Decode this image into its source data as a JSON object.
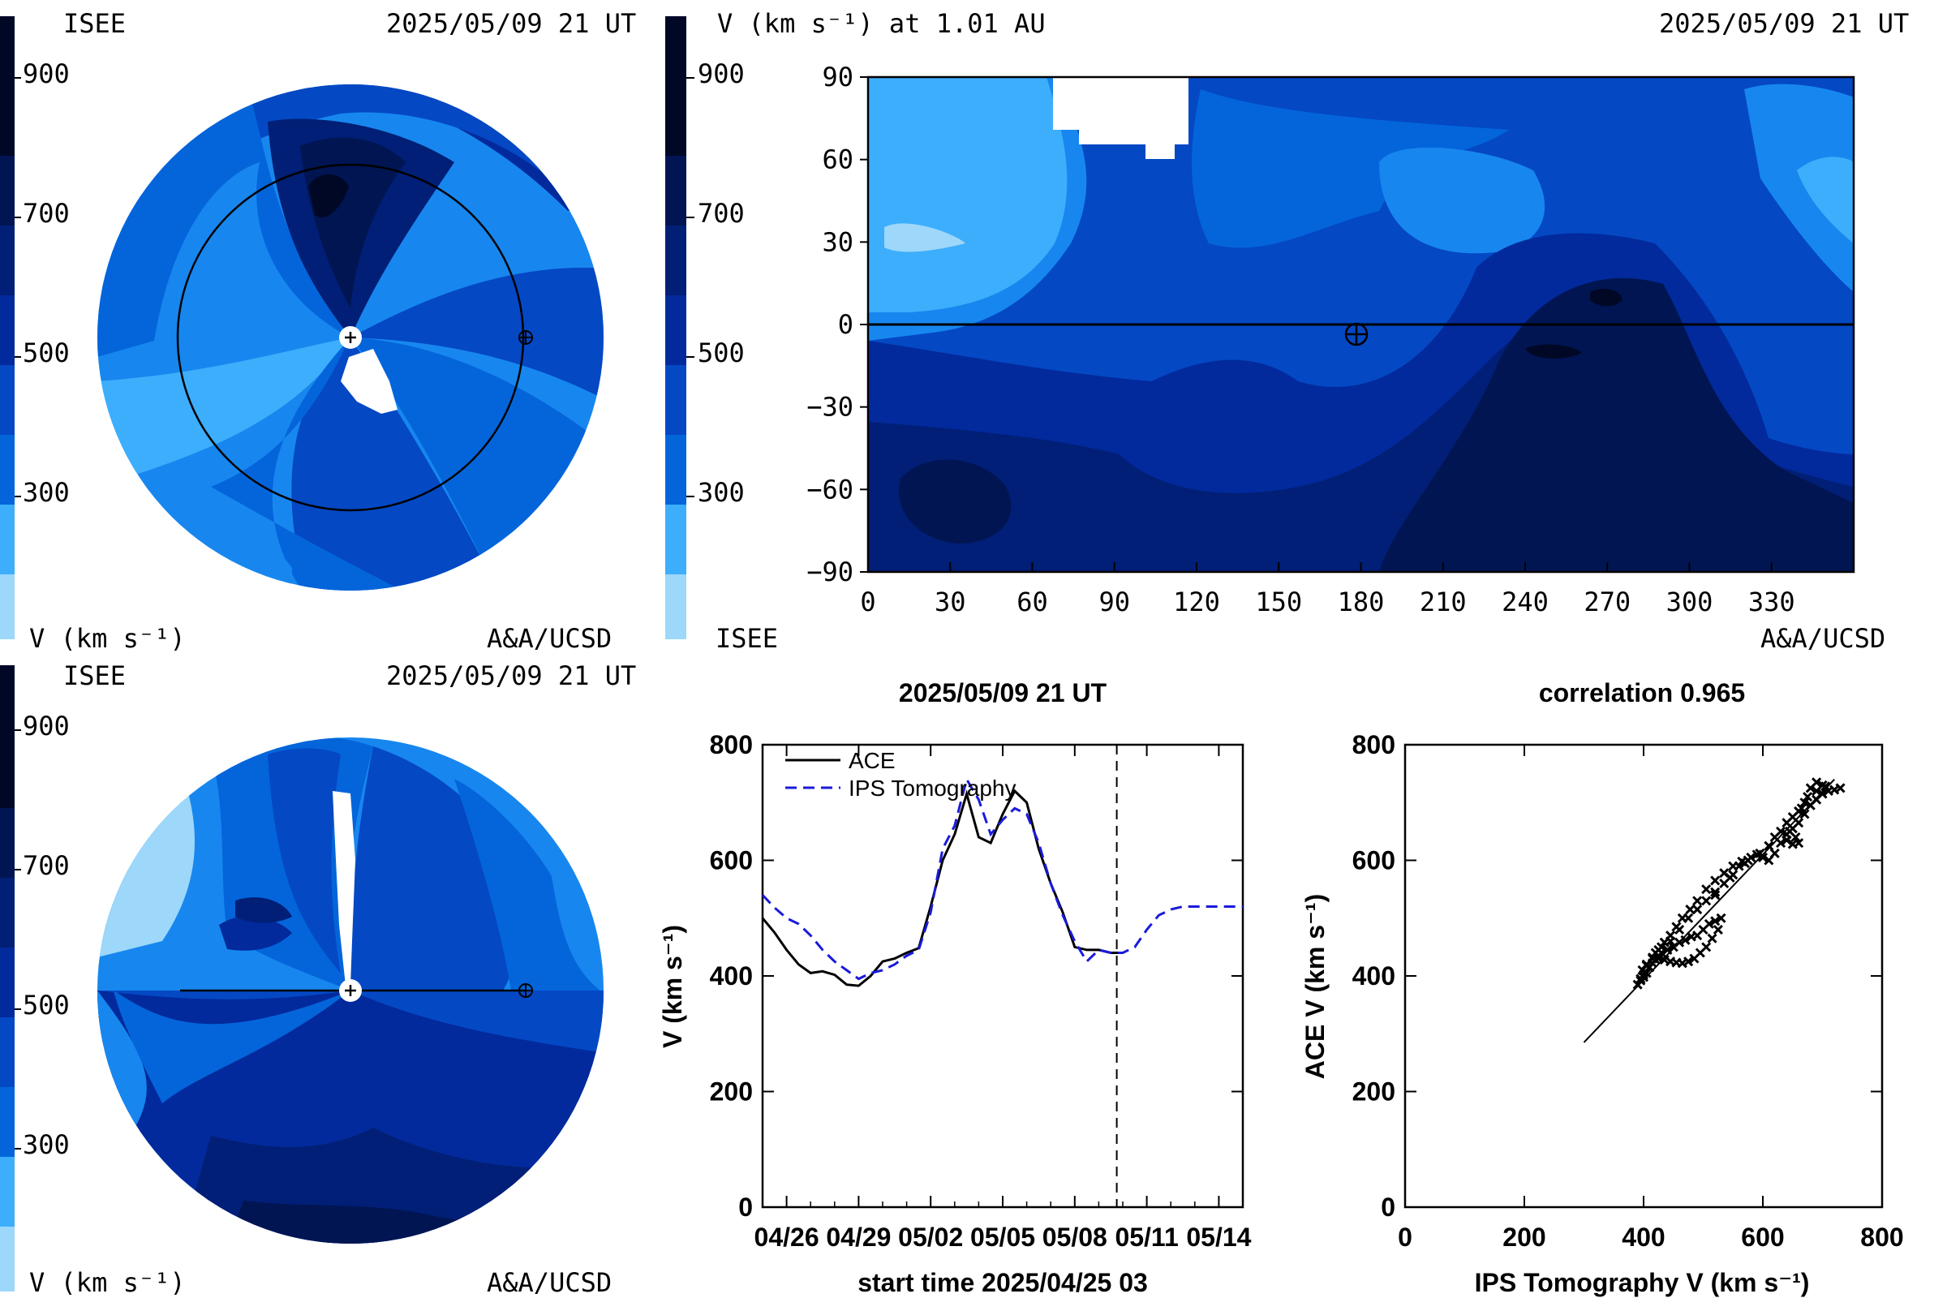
{
  "colors": {
    "c1": "#9dd7fa",
    "c2": "#3daefc",
    "c3": "#1787ef",
    "c4": "#0465db",
    "c5": "#0448c4",
    "c6": "#022a9c",
    "c7": "#011f76",
    "c8": "#001552",
    "c9": "#000826"
  },
  "colorbar": {
    "ticks": [
      "900",
      "700",
      "500",
      "300"
    ]
  },
  "panel_top_left": {
    "org": "ISEE",
    "timestamp": "2025/05/09 21 UT",
    "unit": "V (km s⁻¹)",
    "credit": "A&A/UCSD"
  },
  "panel_bottom_left": {
    "org": "ISEE",
    "timestamp": "2025/05/09 21 UT",
    "unit": "V (km s⁻¹)",
    "credit": "A&A/UCSD"
  },
  "panel_map": {
    "title": "V (km s⁻¹) at 1.01 AU",
    "timestamp": "2025/05/09 21 UT",
    "org": "ISEE",
    "credit": "A&A/UCSD",
    "x_ticks": [
      "0",
      "30",
      "60",
      "90",
      "120",
      "150",
      "180",
      "210",
      "240",
      "270",
      "300",
      "330"
    ],
    "y_ticks": [
      "90",
      "60",
      "30",
      "0",
      "−30",
      "−60",
      "−90"
    ]
  },
  "chart_data": [
    {
      "type": "line",
      "title": "2025/05/09 21 UT",
      "xlabel": "start time 2025/04/25 03",
      "ylabel": "V (km s⁻¹)",
      "x_tick_labels": [
        "04/26",
        "04/29",
        "05/02",
        "05/05",
        "05/08",
        "05/11",
        "05/14"
      ],
      "y_tick_labels": [
        "0",
        "200",
        "400",
        "600",
        "800"
      ],
      "ylim": [
        0,
        800
      ],
      "xlim_days": [
        0,
        20
      ],
      "current_time_day": 14.75,
      "series": [
        {
          "name": "ACE",
          "style": "solid",
          "color": "#000000",
          "x": [
            0,
            0.5,
            1,
            1.5,
            2,
            2.5,
            3,
            3.5,
            4,
            4.5,
            5,
            5.5,
            6,
            6.5,
            7,
            7.5,
            8,
            8.5,
            9,
            9.5,
            10,
            10.5,
            11,
            11.5,
            12,
            12.5,
            13,
            13.5,
            14,
            14.5,
            15
          ],
          "y": [
            500,
            475,
            445,
            420,
            405,
            408,
            402,
            385,
            383,
            400,
            425,
            430,
            440,
            448,
            520,
            600,
            645,
            715,
            640,
            630,
            680,
            720,
            700,
            620,
            560,
            510,
            450,
            445,
            445,
            440,
            440
          ]
        },
        {
          "name": "IPS Tomography",
          "style": "dashed",
          "color": "#1a1adc",
          "x": [
            0,
            0.5,
            1,
            1.5,
            2,
            2.5,
            3,
            3.5,
            4,
            4.5,
            5,
            5.5,
            6,
            6.5,
            7,
            7.5,
            8,
            8.5,
            9,
            9.5,
            10,
            10.5,
            11,
            11.5,
            12,
            12.5,
            13,
            13.5,
            14,
            14.5,
            15,
            15.5,
            16,
            16.5,
            17,
            17.5,
            18,
            18.5,
            19,
            19.5,
            20
          ],
          "y": [
            540,
            518,
            500,
            490,
            470,
            445,
            425,
            410,
            395,
            405,
            410,
            420,
            435,
            445,
            510,
            620,
            660,
            740,
            705,
            645,
            670,
            690,
            680,
            630,
            560,
            505,
            460,
            425,
            445,
            440,
            440,
            450,
            480,
            505,
            515,
            520,
            520,
            520,
            520,
            520,
            520
          ]
        }
      ]
    },
    {
      "type": "scatter",
      "title": "correlation 0.965",
      "xlabel": "IPS Tomography V (km s⁻¹)",
      "ylabel": "ACE V (km s⁻¹)",
      "x_tick_labels": [
        "0",
        "200",
        "400",
        "600",
        "800"
      ],
      "y_tick_labels": [
        "0",
        "200",
        "400",
        "600",
        "800"
      ],
      "xlim": [
        0,
        800
      ],
      "ylim": [
        0,
        800
      ],
      "fit_line": {
        "x": [
          300,
          720
        ],
        "y": [
          285,
          740
        ]
      },
      "points": [
        [
          390,
          385
        ],
        [
          395,
          392
        ],
        [
          400,
          398
        ],
        [
          405,
          405
        ],
        [
          410,
          415
        ],
        [
          415,
          422
        ],
        [
          420,
          428
        ],
        [
          425,
          435
        ],
        [
          430,
          440
        ],
        [
          440,
          445
        ],
        [
          450,
          450
        ],
        [
          460,
          458
        ],
        [
          470,
          462
        ],
        [
          480,
          468
        ],
        [
          490,
          470
        ],
        [
          500,
          480
        ],
        [
          510,
          490
        ],
        [
          520,
          495
        ],
        [
          530,
          500
        ],
        [
          525,
          480
        ],
        [
          515,
          465
        ],
        [
          505,
          450
        ],
        [
          495,
          440
        ],
        [
          485,
          430
        ],
        [
          475,
          425
        ],
        [
          465,
          422
        ],
        [
          455,
          423
        ],
        [
          445,
          425
        ],
        [
          435,
          428
        ],
        [
          425,
          430
        ],
        [
          415,
          432
        ],
        [
          405,
          420
        ],
        [
          398,
          410
        ],
        [
          420,
          440
        ],
        [
          430,
          450
        ],
        [
          445,
          460
        ],
        [
          460,
          480
        ],
        [
          475,
          500
        ],
        [
          490,
          515
        ],
        [
          505,
          530
        ],
        [
          520,
          545
        ],
        [
          535,
          560
        ],
        [
          550,
          575
        ],
        [
          560,
          590
        ],
        [
          575,
          600
        ],
        [
          590,
          610
        ],
        [
          600,
          605
        ],
        [
          610,
          600
        ],
        [
          620,
          612
        ],
        [
          630,
          630
        ],
        [
          640,
          645
        ],
        [
          650,
          655
        ],
        [
          660,
          665
        ],
        [
          670,
          680
        ],
        [
          680,
          695
        ],
        [
          690,
          705
        ],
        [
          700,
          715
        ],
        [
          710,
          720
        ],
        [
          720,
          722
        ],
        [
          730,
          725
        ],
        [
          700,
          730
        ],
        [
          690,
          735
        ],
        [
          680,
          725
        ],
        [
          675,
          710
        ],
        [
          670,
          700
        ],
        [
          665,
          690
        ],
        [
          660,
          685
        ],
        [
          650,
          675
        ],
        [
          640,
          665
        ],
        [
          645,
          650
        ],
        [
          655,
          640
        ],
        [
          660,
          630
        ],
        [
          650,
          628
        ],
        [
          640,
          635
        ],
        [
          630,
          650
        ],
        [
          620,
          640
        ],
        [
          610,
          625
        ],
        [
          595,
          612
        ],
        [
          580,
          605
        ],
        [
          565,
          598
        ],
        [
          550,
          590
        ],
        [
          535,
          578
        ],
        [
          520,
          565
        ],
        [
          505,
          550
        ],
        [
          490,
          530
        ],
        [
          478,
          515
        ],
        [
          465,
          500
        ],
        [
          455,
          485
        ],
        [
          445,
          470
        ],
        [
          435,
          458
        ],
        [
          425,
          445
        ],
        [
          415,
          430
        ],
        [
          405,
          418
        ],
        [
          395,
          395
        ],
        [
          400,
          402
        ],
        [
          520,
          540
        ],
        [
          545,
          570
        ],
        [
          570,
          595
        ],
        [
          690,
          720
        ],
        [
          705,
          728
        ]
      ]
    }
  ]
}
